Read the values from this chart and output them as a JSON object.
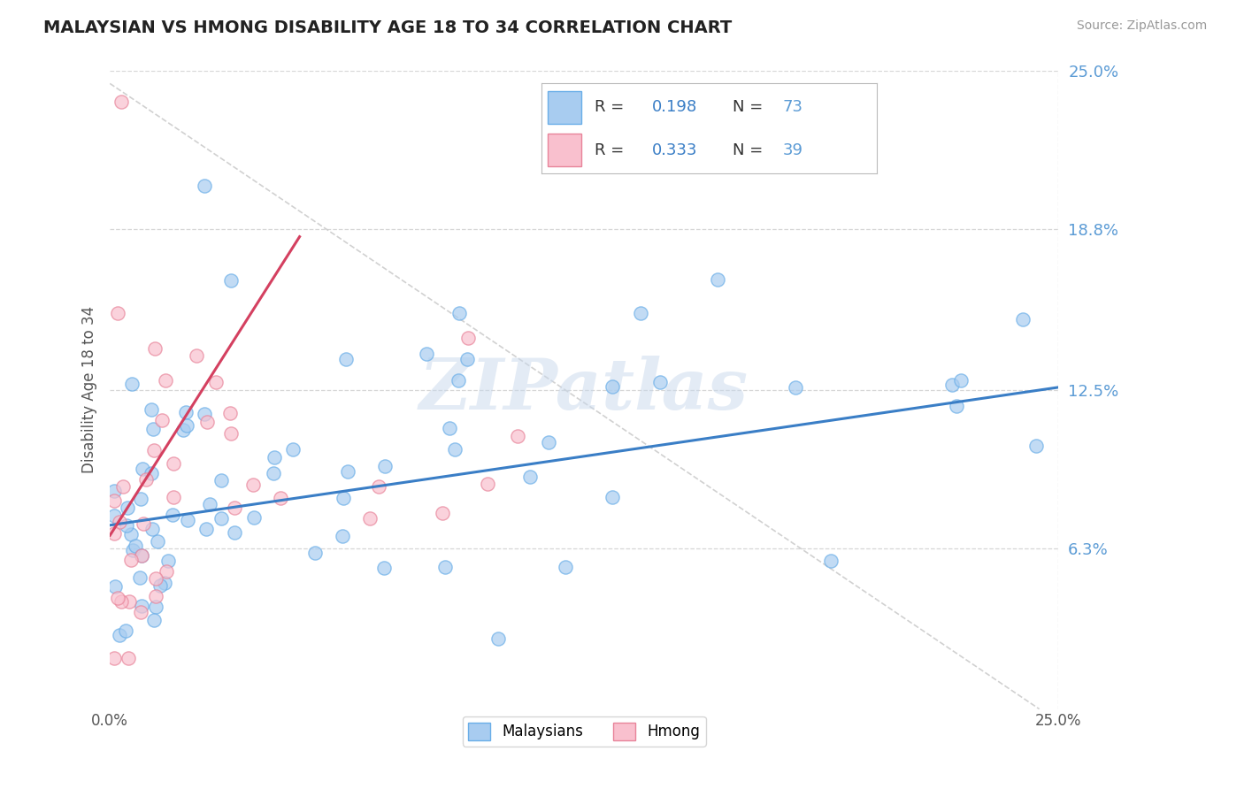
{
  "title": "MALAYSIAN VS HMONG DISABILITY AGE 18 TO 34 CORRELATION CHART",
  "source": "Source: ZipAtlas.com",
  "ylabel": "Disability Age 18 to 34",
  "xlim": [
    0.0,
    0.25
  ],
  "ylim": [
    0.0,
    0.25
  ],
  "ytick_right_labels": [
    "6.3%",
    "12.5%",
    "18.8%",
    "25.0%"
  ],
  "ytick_right_values": [
    0.063,
    0.125,
    0.188,
    0.25
  ],
  "R_malaysian": 0.198,
  "N_malaysian": 73,
  "R_hmong": 0.333,
  "N_hmong": 39,
  "color_malaysian_face": "#A8CCF0",
  "color_malaysian_edge": "#6AAEE8",
  "color_hmong_face": "#F9C0CE",
  "color_hmong_edge": "#E8849A",
  "color_trend_malaysian": "#3A7EC6",
  "color_trend_hmong": "#D44060",
  "color_ref_line": "#CCCCCC",
  "color_title": "#222222",
  "color_source": "#999999",
  "color_axis_label": "#555555",
  "color_tick_right": "#5B9BD5",
  "background_color": "#FFFFFF",
  "watermark_text": "ZIPatlas",
  "trend_mal_x0": 0.0,
  "trend_mal_y0": 0.072,
  "trend_mal_x1": 0.25,
  "trend_mal_y1": 0.126,
  "trend_hmong_x0": 0.0,
  "trend_hmong_y0": 0.068,
  "trend_hmong_x1": 0.05,
  "trend_hmong_y1": 0.185,
  "ref_line_x0": 0.0,
  "ref_line_y0": 0.245,
  "ref_line_x1": 0.245,
  "ref_line_y1": 0.0
}
